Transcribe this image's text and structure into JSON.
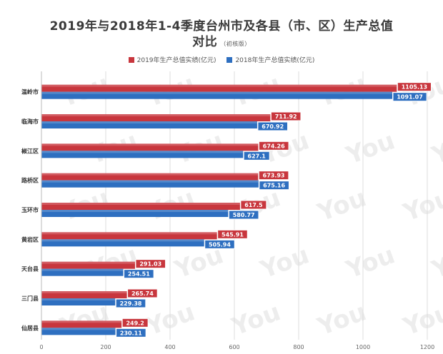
{
  "title_main": "2019年与2018年1-4季度台州市及各县（市、区）生产总值",
  "title_second": "对比",
  "title_note": "（初核版）",
  "watermark": "You",
  "colors": {
    "s2019": "#c8363d",
    "s2018": "#2e6fc0",
    "grid": "#dcdcdc",
    "axis_text": "#666666"
  },
  "chart_data": {
    "type": "bar",
    "orientation": "horizontal",
    "categories": [
      "温岭市",
      "临海市",
      "椒江区",
      "路桥区",
      "玉环市",
      "黄岩区",
      "天台县",
      "三门县",
      "仙居县"
    ],
    "series": [
      {
        "name": "2019年生产总值实绩(亿元)",
        "values": [
          1105.13,
          711.92,
          674.26,
          673.93,
          617.5,
          545.91,
          291.03,
          265.74,
          249.2
        ]
      },
      {
        "name": "2018年生产总值实绩(亿元)",
        "values": [
          1091.07,
          670.92,
          627.1,
          675.16,
          580.77,
          505.94,
          254.51,
          229.38,
          230.11
        ]
      }
    ],
    "xlim": [
      0,
      1200
    ],
    "xticks": [
      0,
      200,
      400,
      600,
      800,
      1000,
      1200
    ],
    "grid": true,
    "legend_position": "top"
  }
}
